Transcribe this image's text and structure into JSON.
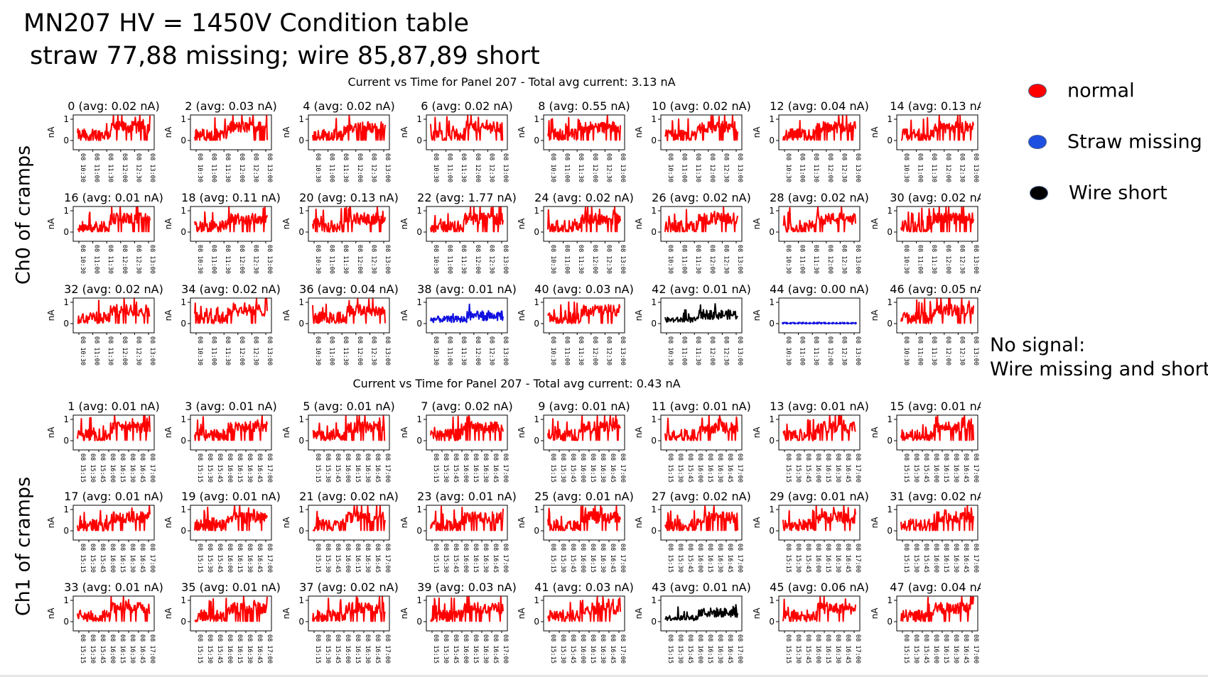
{
  "header": {
    "title_line1": "MN207 HV = 1450V Condition table",
    "title_line2": "straw 77,88 missing; wire 85,87,89 short"
  },
  "legend": [
    {
      "label": "normal",
      "color": "#ff0000"
    },
    {
      "label": "Straw missing",
      "color": "#1f4fe0"
    },
    {
      "label": "Wire short",
      "color": "#000000"
    }
  ],
  "note": {
    "line1": "No signal:",
    "line2": "Wire missing and short"
  },
  "colors": {
    "normal": "#ff0000",
    "straw_missing": "#1010e0",
    "wire_short": "#000000"
  },
  "chart_data": [
    {
      "type": "line",
      "title": "Current vs Time for Panel 207 - Total avg current: 3.13 nA",
      "side_label": "Ch0 of cramps",
      "ylabel": "nA",
      "yticks": [
        "0",
        "1"
      ],
      "ylim": [
        0,
        1
      ],
      "xticks": [
        "08 10:30",
        "08 11:00",
        "08 11:30",
        "08 12:00",
        "08 12:30",
        "08 13:00"
      ],
      "panels": [
        {
          "label": "0 (avg: 0.02 nA)",
          "status": "normal"
        },
        {
          "label": "2 (avg: 0.03 nA)",
          "status": "normal"
        },
        {
          "label": "4 (avg: 0.02 nA)",
          "status": "normal"
        },
        {
          "label": "6 (avg: 0.02 nA)",
          "status": "normal"
        },
        {
          "label": "8 (avg: 0.55 nA)",
          "status": "normal"
        },
        {
          "label": "10 (avg: 0.02 nA)",
          "status": "normal"
        },
        {
          "label": "12 (avg: 0.04 nA)",
          "status": "normal"
        },
        {
          "label": "14 (avg: 0.13 nA",
          "status": "normal"
        },
        {
          "label": "16 (avg: 0.01 nA)",
          "status": "normal"
        },
        {
          "label": "18 (avg: 0.11 nA)",
          "status": "normal"
        },
        {
          "label": "20 (avg: 0.13 nA)",
          "status": "normal"
        },
        {
          "label": "22 (avg: 1.77 nA)",
          "status": "normal"
        },
        {
          "label": "24 (avg: 0.02 nA)",
          "status": "normal"
        },
        {
          "label": "26 (avg: 0.02 nA)",
          "status": "normal"
        },
        {
          "label": "28 (avg: 0.02 nA)",
          "status": "normal"
        },
        {
          "label": "30 (avg: 0.02 nA",
          "status": "normal"
        },
        {
          "label": "32 (avg: 0.02 nA)",
          "status": "normal"
        },
        {
          "label": "34 (avg: 0.02 nA)",
          "status": "normal"
        },
        {
          "label": "36 (avg: 0.04 nA)",
          "status": "normal"
        },
        {
          "label": "38 (avg: 0.01 nA)",
          "status": "straw_missing"
        },
        {
          "label": "40 (avg: 0.03 nA)",
          "status": "normal"
        },
        {
          "label": "42 (avg: 0.01 nA)",
          "status": "wire_short"
        },
        {
          "label": "44 (avg: 0.00 nA)",
          "status": "no_signal"
        },
        {
          "label": "46 (avg: 0.05 nA",
          "status": "normal"
        }
      ]
    },
    {
      "type": "line",
      "title": "Current vs Time for Panel 207 - Total avg current: 0.43 nA",
      "side_label": "Ch1 of cramps",
      "ylabel": "nA",
      "yticks": [
        "0",
        "1"
      ],
      "ylim": [
        0,
        1
      ],
      "xticks": [
        "08 15:15",
        "08 15:30",
        "08 15:45",
        "08 16:00",
        "08 16:15",
        "08 16:30",
        "08 16:45",
        "08 17:00"
      ],
      "panels": [
        {
          "label": "1 (avg: 0.01 nA)",
          "status": "normal"
        },
        {
          "label": "3 (avg: 0.01 nA)",
          "status": "normal"
        },
        {
          "label": "5 (avg: 0.01 nA)",
          "status": "normal"
        },
        {
          "label": "7 (avg: 0.02 nA)",
          "status": "normal"
        },
        {
          "label": "9 (avg: 0.01 nA)",
          "status": "normal"
        },
        {
          "label": "11 (avg: 0.01 nA)",
          "status": "normal"
        },
        {
          "label": "13 (avg: 0.01 nA)",
          "status": "normal"
        },
        {
          "label": "15 (avg: 0.01 nA",
          "status": "normal"
        },
        {
          "label": "17 (avg: 0.01 nA)",
          "status": "normal"
        },
        {
          "label": "19 (avg: 0.01 nA)",
          "status": "normal"
        },
        {
          "label": "21 (avg: 0.02 nA)",
          "status": "normal"
        },
        {
          "label": "23 (avg: 0.01 nA)",
          "status": "normal"
        },
        {
          "label": "25 (avg: 0.01 nA)",
          "status": "normal"
        },
        {
          "label": "27 (avg: 0.02 nA)",
          "status": "normal"
        },
        {
          "label": "29 (avg: 0.01 nA)",
          "status": "normal"
        },
        {
          "label": "31 (avg: 0.02 nA",
          "status": "normal"
        },
        {
          "label": "33 (avg: 0.01 nA)",
          "status": "normal"
        },
        {
          "label": "35 (avg: 0.01 nA)",
          "status": "normal"
        },
        {
          "label": "37 (avg: 0.02 nA)",
          "status": "normal"
        },
        {
          "label": "39 (avg: 0.03 nA)",
          "status": "normal"
        },
        {
          "label": "41 (avg: 0.03 nA)",
          "status": "normal"
        },
        {
          "label": "43 (avg: 0.01 nA)",
          "status": "wire_short"
        },
        {
          "label": "45 (avg: 0.06 nA)",
          "status": "normal"
        },
        {
          "label": "47 (avg: 0.04 nA",
          "status": "normal"
        }
      ]
    }
  ]
}
